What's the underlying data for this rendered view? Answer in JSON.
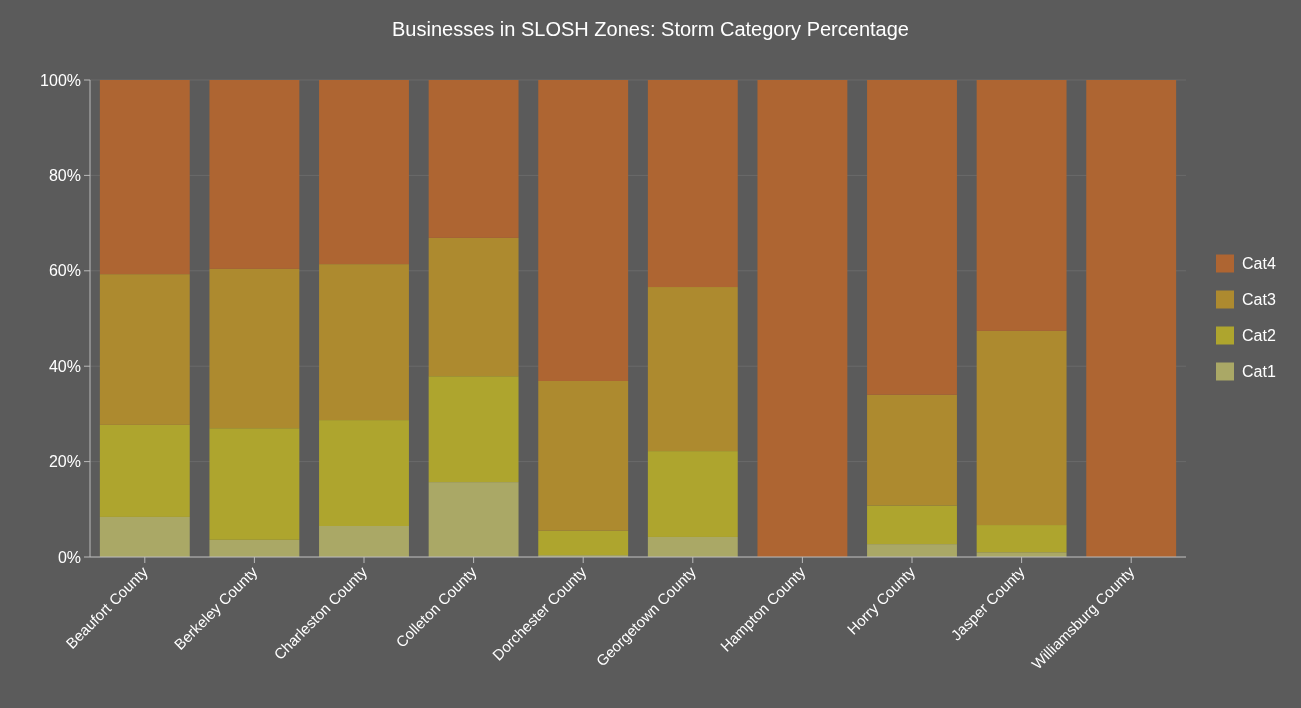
{
  "chart_data": {
    "type": "bar",
    "title": "Businesses in SLOSH Zones: Storm Category Percentage",
    "stacked": true,
    "categories": [
      "Beaufort County",
      "Berkeley County",
      "Charleston County",
      "Colleton County",
      "Dorchester County",
      "Georgetown County",
      "Hampton County",
      "Horry County",
      "Jasper County",
      "Williamsburg County"
    ],
    "series": [
      {
        "name": "Cat1",
        "color": "#aaa866",
        "values": [
          8.4,
          3.6,
          6.5,
          15.7,
          0.4,
          4.2,
          0,
          2.7,
          1.0,
          0
        ]
      },
      {
        "name": "Cat2",
        "color": "#aea52e",
        "values": [
          19.3,
          23.4,
          22.2,
          22.2,
          5.1,
          18.0,
          0,
          8.1,
          5.7,
          0
        ]
      },
      {
        "name": "Cat3",
        "color": "#ad8a2f",
        "values": [
          31.6,
          33.4,
          32.7,
          29.0,
          31.4,
          34.4,
          0,
          23.2,
          40.7,
          0
        ]
      },
      {
        "name": "Cat4",
        "color": "#ae6532",
        "values": [
          40.7,
          39.6,
          38.6,
          33.1,
          63.1,
          43.4,
          100,
          66.0,
          52.6,
          100
        ]
      }
    ],
    "ylim": [
      0,
      100
    ],
    "yticks": [
      {
        "value": 0,
        "label": "0%"
      },
      {
        "value": 20,
        "label": "20%"
      },
      {
        "value": 40,
        "label": "40%"
      },
      {
        "value": 60,
        "label": "60%"
      },
      {
        "value": 80,
        "label": "80%"
      },
      {
        "value": 100,
        "label": "100%"
      }
    ],
    "grid": "y",
    "legend": "right"
  }
}
